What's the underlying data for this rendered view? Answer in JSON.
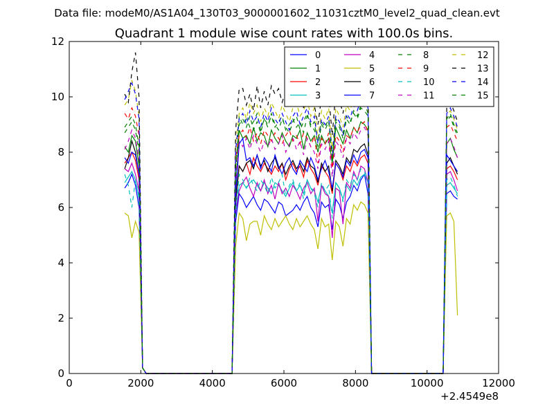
{
  "chart_data": {
    "type": "line",
    "suptitle": "Data file: modeM0/AS1A04_130T03_9000001602_11031cztM0_level2_quad_clean.evt",
    "title": "Quadrant 1 module wise count rates with 100.0s bins.",
    "xlabel": "",
    "ylabel": "",
    "x_offset_label": "+2.4549e8",
    "xlim": [
      0,
      12000
    ],
    "ylim": [
      0,
      12
    ],
    "x_ticks": [
      0,
      2000,
      4000,
      6000,
      8000,
      10000,
      12000
    ],
    "x_tick_labels": [
      "0",
      "2000",
      "4000",
      "6000",
      "8000",
      "10000",
      "12000"
    ],
    "y_ticks": [
      0,
      2,
      4,
      6,
      8,
      10,
      12
    ],
    "y_tick_labels": [
      "0",
      "2",
      "4",
      "6",
      "8",
      "10",
      "12"
    ],
    "grid": false,
    "legend_position": "top-right",
    "legend_columns": 4,
    "x": [
      1550,
      1650,
      1750,
      1850,
      1950,
      2050,
      2150,
      2250,
      4550,
      4650,
      4750,
      4850,
      4950,
      5050,
      5150,
      5250,
      5350,
      5450,
      5550,
      5650,
      5750,
      5850,
      5950,
      6050,
      6150,
      6250,
      6350,
      6450,
      6550,
      6650,
      6750,
      6850,
      6950,
      7050,
      7150,
      7250,
      7350,
      7450,
      7550,
      7650,
      7750,
      7850,
      7950,
      8050,
      8150,
      8250,
      8350,
      8450,
      8550,
      10450,
      10550,
      10650,
      10750,
      10850
    ],
    "series": [
      {
        "name": "0",
        "color": "#0000ff",
        "dash": "solid",
        "values": [
          6.7,
          6.9,
          7.2,
          6.8,
          6.0,
          0.2,
          0,
          0,
          0,
          5.5,
          6.5,
          6.3,
          6.0,
          6.2,
          6.4,
          6.1,
          5.9,
          6.3,
          6.2,
          6.0,
          5.8,
          6.2,
          6.1,
          5.7,
          5.8,
          5.9,
          6.1,
          5.9,
          6.2,
          6.4,
          6.0,
          5.8,
          5.3,
          6.2,
          6.0,
          6.1,
          5.2,
          6.3,
          6.1,
          5.6,
          6.2,
          6.4,
          6.8,
          6.6,
          7.0,
          7.2,
          6.5,
          0,
          0,
          0,
          6.5,
          6.6,
          6.4,
          6.3
        ]
      },
      {
        "name": "1",
        "color": "#008000",
        "dash": "solid",
        "values": [
          8.2,
          8.0,
          8.6,
          8.4,
          7.5,
          0.2,
          0,
          0,
          0,
          6.5,
          8.8,
          8.5,
          8.6,
          8.3,
          8.9,
          8.4,
          8.7,
          8.6,
          8.2,
          8.8,
          8.5,
          8.3,
          8.7,
          8.4,
          8.2,
          8.6,
          8.5,
          8.8,
          8.1,
          8.7,
          8.4,
          8.6,
          8.0,
          8.6,
          8.3,
          8.5,
          7.6,
          8.9,
          8.6,
          8.3,
          8.8,
          8.5,
          8.9,
          8.7,
          9.1,
          9.0,
          8.8,
          0,
          0,
          0,
          8.3,
          8.5,
          8.1,
          7.8
        ]
      },
      {
        "name": "2",
        "color": "#ff0000",
        "dash": "solid",
        "values": [
          7.6,
          7.8,
          8.0,
          7.7,
          7.0,
          0.2,
          0,
          0,
          0,
          6.2,
          7.5,
          7.3,
          7.6,
          7.2,
          7.8,
          7.5,
          7.3,
          7.6,
          7.4,
          7.2,
          7.5,
          7.3,
          7.6,
          7.0,
          7.4,
          7.6,
          7.3,
          7.5,
          7.1,
          7.7,
          7.4,
          7.2,
          6.8,
          7.5,
          7.3,
          7.1,
          6.5,
          7.6,
          7.4,
          7.0,
          7.5,
          7.3,
          7.7,
          7.5,
          7.8,
          7.9,
          7.6,
          0,
          0,
          0,
          7.4,
          7.5,
          7.3,
          7.0
        ]
      },
      {
        "name": "3",
        "color": "#00bfbf",
        "dash": "solid",
        "values": [
          6.9,
          7.1,
          7.3,
          7.0,
          6.3,
          0.2,
          0,
          0,
          0,
          5.9,
          6.8,
          6.9,
          6.7,
          6.9,
          7.0,
          6.8,
          6.6,
          6.9,
          6.7,
          6.5,
          6.9,
          6.8,
          6.6,
          6.4,
          6.7,
          6.9,
          6.6,
          6.8,
          6.5,
          7.0,
          6.7,
          6.6,
          6.2,
          6.8,
          6.6,
          6.4,
          5.8,
          6.9,
          6.7,
          6.3,
          6.8,
          6.6,
          7.0,
          6.8,
          7.1,
          7.2,
          6.9,
          0,
          0,
          0,
          6.8,
          6.9,
          6.7,
          6.5
        ]
      },
      {
        "name": "4",
        "color": "#bf00bf",
        "dash": "solid",
        "values": [
          7.4,
          7.3,
          7.6,
          7.2,
          6.6,
          0.2,
          0,
          0,
          0,
          5.8,
          6.6,
          6.9,
          7.1,
          6.7,
          6.4,
          6.9,
          6.6,
          7.0,
          6.5,
          6.8,
          6.3,
          6.9,
          6.5,
          6.7,
          6.4,
          6.8,
          6.6,
          6.3,
          6.7,
          6.9,
          6.5,
          6.7,
          5.5,
          6.8,
          6.5,
          6.4,
          4.9,
          6.7,
          6.6,
          5.4,
          6.9,
          6.7,
          7.3,
          7.0,
          7.5,
          7.4,
          6.9,
          0,
          0,
          0,
          7.2,
          7.3,
          7.0,
          6.6
        ]
      },
      {
        "name": "5",
        "color": "#bfbf00",
        "dash": "solid",
        "values": [
          5.8,
          5.7,
          4.9,
          5.5,
          5.1,
          0.2,
          0,
          0,
          0,
          4.6,
          5.8,
          5.6,
          4.8,
          5.4,
          5.5,
          5.5,
          5.0,
          5.7,
          5.4,
          5.2,
          5.6,
          5.3,
          5.5,
          5.7,
          5.4,
          5.2,
          5.6,
          5.3,
          5.5,
          5.7,
          5.4,
          5.2,
          4.5,
          5.6,
          5.3,
          5.4,
          4.1,
          5.5,
          5.3,
          4.6,
          5.6,
          5.4,
          6.1,
          5.9,
          6.2,
          6.1,
          5.8,
          0,
          0,
          0,
          5.7,
          5.8,
          5.5,
          2.1
        ]
      },
      {
        "name": "6",
        "color": "#000000",
        "dash": "solid",
        "values": [
          7.4,
          7.8,
          8.4,
          8.0,
          7.2,
          0.2,
          0,
          0,
          0,
          6.2,
          7.5,
          7.3,
          7.6,
          7.7,
          7.4,
          7.9,
          7.5,
          7.7,
          7.3,
          7.6,
          7.8,
          7.4,
          7.6,
          7.2,
          7.5,
          7.7,
          7.4,
          7.6,
          7.3,
          7.8,
          7.5,
          7.4,
          6.9,
          7.6,
          7.3,
          7.5,
          6.6,
          7.7,
          7.5,
          7.2,
          7.8,
          7.6,
          8.1,
          8.0,
          8.2,
          8.3,
          7.9,
          0,
          0,
          0,
          7.6,
          7.8,
          7.5,
          7.2
        ]
      },
      {
        "name": "7",
        "color": "#0000ff",
        "dash": "solid",
        "values": [
          7.8,
          7.6,
          8.0,
          7.9,
          7.2,
          0.2,
          0,
          0,
          0,
          6.4,
          8.3,
          8.5,
          7.7,
          7.8,
          7.5,
          7.9,
          7.4,
          7.8,
          7.6,
          7.3,
          7.9,
          7.5,
          7.2,
          7.6,
          7.8,
          7.4,
          7.2,
          7.7,
          7.5,
          7.3,
          7.8,
          7.5,
          7.0,
          7.4,
          7.7,
          7.3,
          6.7,
          7.6,
          7.4,
          7.1,
          7.7,
          7.5,
          7.9,
          7.6,
          8.0,
          8.1,
          7.8,
          0,
          0,
          0,
          7.9,
          7.7,
          7.5,
          7.3
        ]
      },
      {
        "name": "8",
        "color": "#008000",
        "dash": "dashed",
        "values": [
          8.7,
          8.9,
          9.1,
          8.8,
          8.0,
          0.2,
          0,
          0,
          0,
          7.2,
          9.3,
          9.0,
          9.2,
          8.9,
          9.1,
          9.4,
          8.8,
          9.2,
          9.0,
          9.3,
          8.9,
          9.1,
          9.3,
          8.8,
          9.0,
          9.2,
          8.9,
          9.1,
          8.7,
          9.3,
          9.0,
          8.8,
          8.4,
          9.1,
          8.9,
          9.2,
          8.1,
          9.2,
          9.0,
          8.7,
          9.3,
          9.1,
          9.4,
          9.2,
          9.6,
          9.5,
          9.3,
          0,
          0,
          0,
          9.1,
          9.3,
          8.9,
          8.6
        ]
      },
      {
        "name": "9",
        "color": "#ff0000",
        "dash": "dashed",
        "values": [
          9.4,
          9.2,
          9.6,
          9.3,
          8.6,
          0.2,
          0,
          0,
          0,
          7.8,
          8.6,
          8.8,
          8.5,
          8.9,
          8.4,
          8.7,
          8.3,
          8.8,
          8.6,
          8.4,
          8.7,
          8.5,
          8.3,
          8.6,
          8.8,
          8.4,
          8.6,
          8.3,
          8.7,
          8.5,
          8.2,
          8.6,
          7.6,
          8.5,
          8.3,
          8.7,
          7.4,
          8.6,
          8.4,
          8.0,
          8.6,
          8.5,
          8.9,
          8.7,
          9.0,
          9.1,
          8.7,
          0,
          0,
          0,
          8.9,
          9.0,
          8.7,
          8.4
        ]
      },
      {
        "name": "10",
        "color": "#00bfbf",
        "dash": "dashed",
        "values": [
          7.2,
          6.8,
          6.0,
          7.0,
          6.4,
          0.2,
          0,
          0,
          0,
          5.8,
          7.2,
          7.0,
          6.7,
          7.1,
          6.8,
          6.6,
          7.0,
          6.8,
          6.5,
          7.1,
          6.7,
          6.9,
          7.2,
          6.4,
          6.8,
          7.0,
          6.6,
          6.9,
          6.3,
          7.0,
          6.7,
          6.5,
          6.0,
          6.9,
          6.6,
          6.8,
          5.6,
          6.9,
          6.7,
          6.2,
          7.0,
          6.8,
          7.2,
          7.0,
          7.4,
          7.3,
          7.0,
          0,
          0,
          0,
          7.0,
          7.1,
          6.8,
          6.4
        ]
      },
      {
        "name": "11",
        "color": "#bf00bf",
        "dash": "dashed",
        "values": [
          8.1,
          8.4,
          8.8,
          8.5,
          7.7,
          0.2,
          0,
          0,
          0,
          6.9,
          8.4,
          8.2,
          8.5,
          8.1,
          8.6,
          8.3,
          8.0,
          8.4,
          8.2,
          8.5,
          8.1,
          8.3,
          8.6,
          8.0,
          8.3,
          8.5,
          8.1,
          8.4,
          7.9,
          8.5,
          8.2,
          8.0,
          7.4,
          8.3,
          8.1,
          8.4,
          7.1,
          8.4,
          8.2,
          7.8,
          8.5,
          8.3,
          8.7,
          8.5,
          8.8,
          8.9,
          8.6,
          0,
          0,
          0,
          8.3,
          8.5,
          8.2,
          7.8
        ]
      },
      {
        "name": "12",
        "color": "#bfbf00",
        "dash": "dashed",
        "values": [
          9.7,
          9.9,
          10.6,
          10.2,
          9.3,
          0.2,
          0,
          0,
          0,
          8.3,
          9.4,
          9.6,
          9.2,
          9.8,
          9.4,
          9.7,
          9.1,
          9.6,
          9.3,
          9.8,
          9.5,
          9.2,
          9.7,
          9.4,
          9.1,
          9.6,
          9.8,
          9.3,
          9.5,
          9.9,
          9.3,
          9.6,
          8.5,
          9.5,
          9.2,
          9.6,
          8.0,
          9.6,
          9.3,
          8.9,
          9.7,
          9.5,
          10.0,
          9.8,
          10.1,
          10.2,
          9.8,
          0,
          0,
          0,
          9.3,
          9.5,
          9.2,
          8.8
        ]
      },
      {
        "name": "13",
        "color": "#000000",
        "dash": "dashed",
        "values": [
          10.1,
          9.8,
          10.9,
          11.6,
          10.0,
          0.2,
          0,
          0,
          0,
          8.8,
          10.3,
          10.3,
          9.7,
          10.1,
          9.5,
          10.4,
          9.6,
          10.2,
          9.7,
          10.4,
          10.1,
          10.3,
          9.8,
          10.2,
          9.9,
          10.4,
          9.8,
          10.1,
          9.6,
          10.3,
          9.9,
          9.7,
          9.0,
          10.0,
          9.7,
          10.1,
          8.6,
          10.2,
          9.9,
          9.4,
          10.3,
          10.0,
          10.6,
          10.4,
          11.3,
          10.8,
          10.4,
          0,
          0,
          0,
          9.6,
          9.8,
          9.5,
          9.1
        ]
      },
      {
        "name": "14",
        "color": "#0000ff",
        "dash": "dashed",
        "values": [
          9.9,
          10.2,
          10.5,
          10.1,
          9.2,
          0.2,
          0,
          0,
          0,
          8.1,
          9.2,
          9.4,
          9.0,
          9.5,
          9.1,
          9.3,
          8.9,
          9.4,
          9.1,
          9.6,
          9.2,
          9.0,
          9.4,
          9.1,
          8.8,
          9.3,
          9.5,
          9.0,
          9.3,
          9.6,
          9.1,
          9.3,
          8.3,
          9.2,
          9.0,
          9.3,
          7.8,
          9.3,
          9.1,
          8.6,
          9.4,
          9.2,
          9.7,
          9.5,
          9.9,
          10.0,
          9.6,
          0,
          0,
          0,
          9.4,
          9.6,
          9.3,
          8.9
        ]
      },
      {
        "name": "15",
        "color": "#008000",
        "dash": "dashed",
        "values": [
          8.9,
          9.1,
          9.3,
          9.0,
          8.2,
          0.2,
          0,
          0,
          0,
          7.4,
          9.0,
          9.2,
          8.9,
          9.3,
          8.8,
          9.1,
          8.7,
          9.2,
          8.9,
          9.4,
          9.0,
          8.8,
          9.2,
          8.9,
          8.7,
          9.1,
          9.3,
          8.8,
          9.1,
          9.4,
          8.9,
          9.1,
          8.2,
          9.0,
          8.8,
          9.1,
          7.7,
          9.1,
          8.9,
          8.5,
          9.2,
          9.0,
          9.5,
          9.3,
          9.7,
          9.8,
          9.4,
          0,
          0,
          0,
          9.2,
          9.4,
          9.0,
          8.7
        ]
      }
    ]
  }
}
